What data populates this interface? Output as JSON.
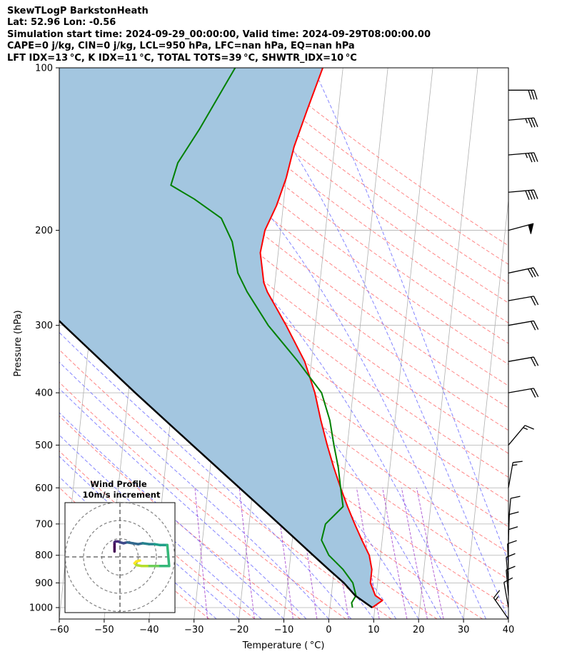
{
  "header": {
    "line1": "SkewTLogP BarkstonHeath",
    "line2": "Lat: 52.96   Lon: -0.56",
    "line3": "Simulation start time: 2024-09-29_00:00:00, Valid time: 2024-09-29T08:00:00.00",
    "line4": "CAPE=0 j/kg, CIN=0 j/kg, LCL=950 hPa, LFC=nan hPa, EQ=nan hPa",
    "line5": "LFT IDX=13 °C, K IDX=11 °C, TOTAL TOTS=39 °C, SHWTR_IDX=10 °C"
  },
  "chart_data": {
    "type": "line",
    "subtype": "skew-t log-p",
    "xlabel": "Temperature ( °C)",
    "ylabel": "Pressure (hPa)",
    "x_ticks": [
      -60,
      -50,
      -40,
      -30,
      -20,
      -10,
      0,
      10,
      20,
      30,
      40
    ],
    "y_ticks": [
      100,
      200,
      300,
      400,
      500,
      600,
      700,
      800,
      900,
      1000
    ],
    "xlim": [
      -60,
      40
    ],
    "ylim": [
      1050,
      100
    ],
    "y_scale": "log",
    "grid": true,
    "colors": {
      "temperature": "#ff0000",
      "dewpoint": "#008000",
      "parcel": "#000000",
      "shade": "#a3c6e0",
      "dry_adiabat": "#ff6666",
      "moist_adiabat": "#6666ff",
      "mixing_ratio": "#9b30c8",
      "isotherm": "#b0b0b0"
    },
    "series": [
      {
        "key": "temperature",
        "points": [
          [
            1000,
            9.4
          ],
          [
            970,
            11.5
          ],
          [
            950,
            9.8
          ],
          [
            900,
            8.4
          ],
          [
            850,
            8.4
          ],
          [
            800,
            7.5
          ],
          [
            750,
            5.5
          ],
          [
            700,
            3.5
          ],
          [
            650,
            1.5
          ],
          [
            600,
            -0.5
          ],
          [
            550,
            -2.5
          ],
          [
            500,
            -4.5
          ],
          [
            450,
            -6.5
          ],
          [
            400,
            -8.5
          ],
          [
            350,
            -11.5
          ],
          [
            300,
            -16.5
          ],
          [
            260,
            -21.5
          ],
          [
            250,
            -22.5
          ],
          [
            220,
            -24.0
          ],
          [
            200,
            -23.5
          ],
          [
            180,
            -21.5
          ],
          [
            160,
            -20.0
          ],
          [
            140,
            -19.0
          ],
          [
            120,
            -17.0
          ],
          [
            100,
            -14.5
          ]
        ]
      },
      {
        "key": "dewpoint",
        "points": [
          [
            1000,
            5.0
          ],
          [
            980,
            4.7
          ],
          [
            950,
            5.5
          ],
          [
            900,
            4.5
          ],
          [
            850,
            2.0
          ],
          [
            800,
            -1.5
          ],
          [
            750,
            -3.5
          ],
          [
            700,
            -3.0
          ],
          [
            650,
            0.5
          ],
          [
            600,
            -0.5
          ],
          [
            550,
            -1.5
          ],
          [
            500,
            -3.0
          ],
          [
            450,
            -4.5
          ],
          [
            400,
            -7.0
          ],
          [
            350,
            -13.0
          ],
          [
            300,
            -20.5
          ],
          [
            260,
            -26.0
          ],
          [
            240,
            -28.5
          ],
          [
            210,
            -30.5
          ],
          [
            190,
            -33.5
          ],
          [
            175,
            -40.0
          ],
          [
            165,
            -45.5
          ],
          [
            150,
            -44.5
          ],
          [
            130,
            -40.5
          ],
          [
            100,
            -34.0
          ]
        ]
      },
      {
        "key": "parcel",
        "points": [
          [
            1000,
            9.4
          ],
          [
            950,
            5.3
          ],
          [
            900,
            2.5
          ],
          [
            850,
            -1.2
          ],
          [
            800,
            -5.0
          ],
          [
            700,
            -13.3
          ],
          [
            600,
            -23.0
          ],
          [
            500,
            -34.5
          ],
          [
            400,
            -48.5
          ],
          [
            300,
            -66.0
          ],
          [
            250,
            -76.8
          ],
          [
            200,
            -89.5
          ],
          [
            150,
            -105.0
          ],
          [
            100,
            -126.0
          ]
        ]
      }
    ],
    "wind_barbs": [
      {
        "p": 1050,
        "dir_deg": 325,
        "speed_kt": 15
      },
      {
        "p": 1000,
        "dir_deg": 350,
        "speed_kt": 10
      },
      {
        "p": 950,
        "dir_deg": 355,
        "speed_kt": 10
      },
      {
        "p": 900,
        "dir_deg": 355,
        "speed_kt": 10
      },
      {
        "p": 850,
        "dir_deg": 358,
        "speed_kt": 10
      },
      {
        "p": 800,
        "dir_deg": 0,
        "speed_kt": 10
      },
      {
        "p": 750,
        "dir_deg": 2,
        "speed_kt": 10
      },
      {
        "p": 700,
        "dir_deg": 5,
        "speed_kt": 10
      },
      {
        "p": 600,
        "dir_deg": 10,
        "speed_kt": 15
      },
      {
        "p": 500,
        "dir_deg": 40,
        "speed_kt": 15
      },
      {
        "p": 400,
        "dir_deg": 80,
        "speed_kt": 20
      },
      {
        "p": 350,
        "dir_deg": 80,
        "speed_kt": 20
      },
      {
        "p": 300,
        "dir_deg": 80,
        "speed_kt": 20
      },
      {
        "p": 270,
        "dir_deg": 80,
        "speed_kt": 20
      },
      {
        "p": 240,
        "dir_deg": 78,
        "speed_kt": 30
      },
      {
        "p": 200,
        "dir_deg": 75,
        "speed_kt": 50
      },
      {
        "p": 170,
        "dir_deg": 85,
        "speed_kt": 40
      },
      {
        "p": 145,
        "dir_deg": 85,
        "speed_kt": 35
      },
      {
        "p": 125,
        "dir_deg": 85,
        "speed_kt": 35
      },
      {
        "p": 110,
        "dir_deg": 90,
        "speed_kt": 30
      }
    ],
    "inset": {
      "title_line1": "Wind Profile",
      "title_line2": "10m/s increment",
      "rings_ms": [
        10,
        20,
        30
      ],
      "hodograph_uv": [
        [
          11,
          -2
        ],
        [
          9,
          -2.5
        ],
        [
          8,
          -3.5
        ],
        [
          9,
          -4.5
        ],
        [
          12,
          -5
        ],
        [
          15,
          -5
        ],
        [
          18,
          -5
        ],
        [
          21,
          -5
        ],
        [
          24,
          -5
        ],
        [
          27,
          -5
        ],
        [
          26,
          6.5
        ],
        [
          24,
          6.5
        ],
        [
          22,
          6.5
        ],
        [
          19,
          7
        ],
        [
          16,
          7
        ],
        [
          12.5,
          7.5
        ],
        [
          10,
          7
        ],
        [
          7,
          7.5
        ],
        [
          4,
          8
        ],
        [
          2,
          7.5
        ],
        [
          0,
          8
        ],
        [
          -1,
          8.5
        ],
        [
          -2.5,
          8.5
        ],
        [
          -3,
          8
        ],
        [
          -3,
          7
        ],
        [
          -3,
          5.5
        ],
        [
          -3,
          3
        ]
      ]
    }
  }
}
